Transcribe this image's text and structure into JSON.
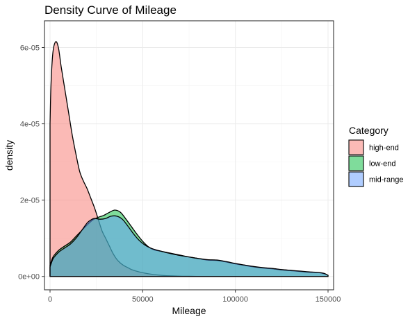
{
  "chart_data": {
    "type": "area",
    "title": "Density Curve of Mileage",
    "xlabel": "Mileage",
    "ylabel": "density",
    "xlim": [
      -3000,
      153000
    ],
    "ylim": [
      -3.5e-06,
      6.7e-05
    ],
    "x_ticks": [
      0,
      50000,
      100000,
      150000
    ],
    "x_tick_labels": [
      "0",
      "50000",
      "100000",
      "150000"
    ],
    "y_ticks": [
      0,
      2e-05,
      4e-05,
      6e-05
    ],
    "y_tick_labels": [
      "0e+00",
      "2e-05",
      "4e-05",
      "6e-05"
    ],
    "grid": true,
    "legend": {
      "title": "Category",
      "position": "right"
    },
    "fill_alpha": 0.5,
    "series": [
      {
        "name": "high-end",
        "color": "#F8766D",
        "points": [
          [
            0,
            4e-05
          ],
          [
            500,
            5e-05
          ],
          [
            1500,
            5.85e-05
          ],
          [
            3000,
            6.15e-05
          ],
          [
            4500,
            6e-05
          ],
          [
            6000,
            5.5e-05
          ],
          [
            8000,
            4.9e-05
          ],
          [
            10000,
            4.3e-05
          ],
          [
            12000,
            3.7e-05
          ],
          [
            14000,
            3.2e-05
          ],
          [
            16000,
            2.75e-05
          ],
          [
            18000,
            2.5e-05
          ],
          [
            20000,
            2.3e-05
          ],
          [
            22000,
            2.05e-05
          ],
          [
            24000,
            1.8e-05
          ],
          [
            26000,
            1.5e-05
          ],
          [
            28000,
            1.2e-05
          ],
          [
            30000,
            1e-05
          ],
          [
            32000,
            8e-06
          ],
          [
            34000,
            6e-06
          ],
          [
            36000,
            4.5e-06
          ],
          [
            38000,
            3.5e-06
          ],
          [
            40000,
            2.8e-06
          ],
          [
            42000,
            2.3e-06
          ],
          [
            44000,
            1.8e-06
          ],
          [
            48000,
            1.2e-06
          ],
          [
            52000,
            8e-07
          ],
          [
            56000,
            5e-07
          ],
          [
            60000,
            3e-07
          ],
          [
            66000,
            1.5e-07
          ],
          [
            75000,
            5e-08
          ],
          [
            90000,
            0
          ],
          [
            150000,
            0
          ]
        ]
      },
      {
        "name": "low-end",
        "color": "#00BA38",
        "points": [
          [
            0,
            3e-06
          ],
          [
            1500,
            5e-06
          ],
          [
            3000,
            6e-06
          ],
          [
            5000,
            7e-06
          ],
          [
            8000,
            8e-06
          ],
          [
            11000,
            9e-06
          ],
          [
            14000,
            1.05e-05
          ],
          [
            17000,
            1.2e-05
          ],
          [
            20000,
            1.35e-05
          ],
          [
            23000,
            1.48e-05
          ],
          [
            26000,
            1.55e-05
          ],
          [
            29000,
            1.6e-05
          ],
          [
            32000,
            1.68e-05
          ],
          [
            35000,
            1.74e-05
          ],
          [
            38000,
            1.68e-05
          ],
          [
            41000,
            1.5e-05
          ],
          [
            44000,
            1.3e-05
          ],
          [
            47000,
            1.1e-05
          ],
          [
            50000,
            9.2e-06
          ],
          [
            53000,
            7.8e-06
          ],
          [
            56000,
            7e-06
          ],
          [
            60000,
            6.6e-06
          ],
          [
            65000,
            6.1e-06
          ],
          [
            70000,
            5.6e-06
          ],
          [
            75000,
            5.1e-06
          ],
          [
            80000,
            4.7e-06
          ],
          [
            85000,
            4.3e-06
          ],
          [
            90000,
            4.2e-06
          ],
          [
            95000,
            3.8e-06
          ],
          [
            100000,
            3.3e-06
          ],
          [
            105000,
            2.9e-06
          ],
          [
            110000,
            2.5e-06
          ],
          [
            115000,
            2.2e-06
          ],
          [
            120000,
            2e-06
          ],
          [
            125000,
            1.7e-06
          ],
          [
            130000,
            1.5e-06
          ],
          [
            135000,
            1.3e-06
          ],
          [
            140000,
            1.1e-06
          ],
          [
            145000,
            1e-06
          ],
          [
            148000,
            7e-07
          ],
          [
            150000,
            3e-07
          ]
        ]
      },
      {
        "name": "mid-range",
        "color": "#619CFF",
        "points": [
          [
            0,
            2.5e-06
          ],
          [
            1500,
            4.5e-06
          ],
          [
            3000,
            5.5e-06
          ],
          [
            5000,
            6.5e-06
          ],
          [
            8000,
            7.5e-06
          ],
          [
            11000,
            8.5e-06
          ],
          [
            14000,
            1e-05
          ],
          [
            17000,
            1.2e-05
          ],
          [
            20000,
            1.4e-05
          ],
          [
            22000,
            1.48e-05
          ],
          [
            24000,
            1.52e-05
          ],
          [
            27000,
            1.5e-05
          ],
          [
            30000,
            1.52e-05
          ],
          [
            33000,
            1.58e-05
          ],
          [
            36000,
            1.58e-05
          ],
          [
            39000,
            1.5e-05
          ],
          [
            42000,
            1.32e-05
          ],
          [
            45000,
            1.12e-05
          ],
          [
            48000,
            9.5e-06
          ],
          [
            51000,
            8.3e-06
          ],
          [
            54000,
            7.5e-06
          ],
          [
            57000,
            7e-06
          ],
          [
            60000,
            6.6e-06
          ],
          [
            65000,
            6e-06
          ],
          [
            70000,
            5.5e-06
          ],
          [
            75000,
            5.1e-06
          ],
          [
            80000,
            4.7e-06
          ],
          [
            85000,
            4.4e-06
          ],
          [
            90000,
            4.3e-06
          ],
          [
            95000,
            3.9e-06
          ],
          [
            100000,
            3.4e-06
          ],
          [
            105000,
            3e-06
          ],
          [
            110000,
            2.6e-06
          ],
          [
            115000,
            2.3e-06
          ],
          [
            120000,
            2.1e-06
          ],
          [
            125000,
            1.8e-06
          ],
          [
            130000,
            1.6e-06
          ],
          [
            135000,
            1.4e-06
          ],
          [
            140000,
            1.2e-06
          ],
          [
            145000,
            1.05e-06
          ],
          [
            148000,
            8e-07
          ],
          [
            150000,
            3e-07
          ]
        ]
      }
    ]
  }
}
